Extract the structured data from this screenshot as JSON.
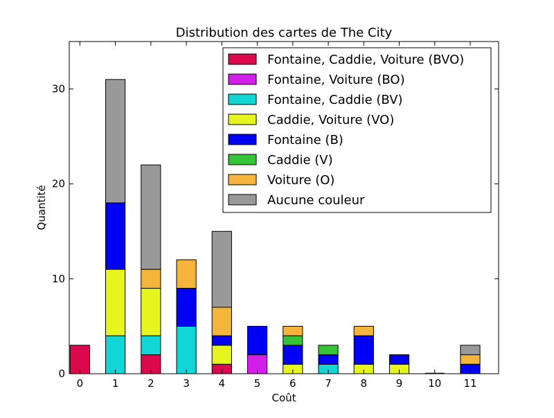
{
  "chart_data": {
    "type": "bar",
    "stacked": true,
    "title": "Distribution des cartes de The City",
    "xlabel": "Coût",
    "ylabel": "Quantité",
    "categories": [
      "0",
      "1",
      "2",
      "3",
      "4",
      "5",
      "6",
      "7",
      "8",
      "9",
      "10",
      "11"
    ],
    "ylim": [
      0,
      35
    ],
    "yticks": [
      0,
      10,
      20,
      30
    ],
    "legend_position": "top-right",
    "series": [
      {
        "name": "Fontaine, Caddie, Voiture (BVO)",
        "color": "#dc0a4c",
        "values": [
          3,
          0,
          2,
          0,
          1,
          0,
          0,
          0,
          0,
          0,
          0,
          0
        ]
      },
      {
        "name": "Fontaine, Voiture (BO)",
        "color": "#d21ee8",
        "values": [
          0,
          0,
          0,
          0,
          0,
          2,
          0,
          0,
          0,
          0,
          0,
          0
        ]
      },
      {
        "name": "Fontaine, Caddie (BV)",
        "color": "#12d5d5",
        "values": [
          0,
          4,
          2,
          5,
          0,
          0,
          0,
          1,
          0,
          0,
          0,
          0
        ]
      },
      {
        "name": "Caddie, Voiture (VO)",
        "color": "#e6f51e",
        "values": [
          0,
          7,
          5,
          0,
          2,
          0,
          1,
          0,
          1,
          1,
          0,
          0
        ]
      },
      {
        "name": "Fontaine (B)",
        "color": "#0000f5",
        "values": [
          0,
          7,
          0,
          4,
          1,
          3,
          2,
          1,
          3,
          1,
          0,
          1
        ]
      },
      {
        "name": "Caddie (V)",
        "color": "#37c337",
        "values": [
          0,
          0,
          0,
          0,
          0,
          0,
          1,
          1,
          0,
          0,
          0,
          0
        ]
      },
      {
        "name": "Voiture (O)",
        "color": "#f5b43c",
        "values": [
          0,
          0,
          2,
          3,
          3,
          0,
          1,
          0,
          1,
          0,
          0,
          1
        ]
      },
      {
        "name": "Aucune couleur",
        "color": "#999999",
        "values": [
          0,
          13,
          11,
          0,
          8,
          0,
          0,
          0,
          0,
          0,
          0,
          1
        ]
      }
    ]
  }
}
